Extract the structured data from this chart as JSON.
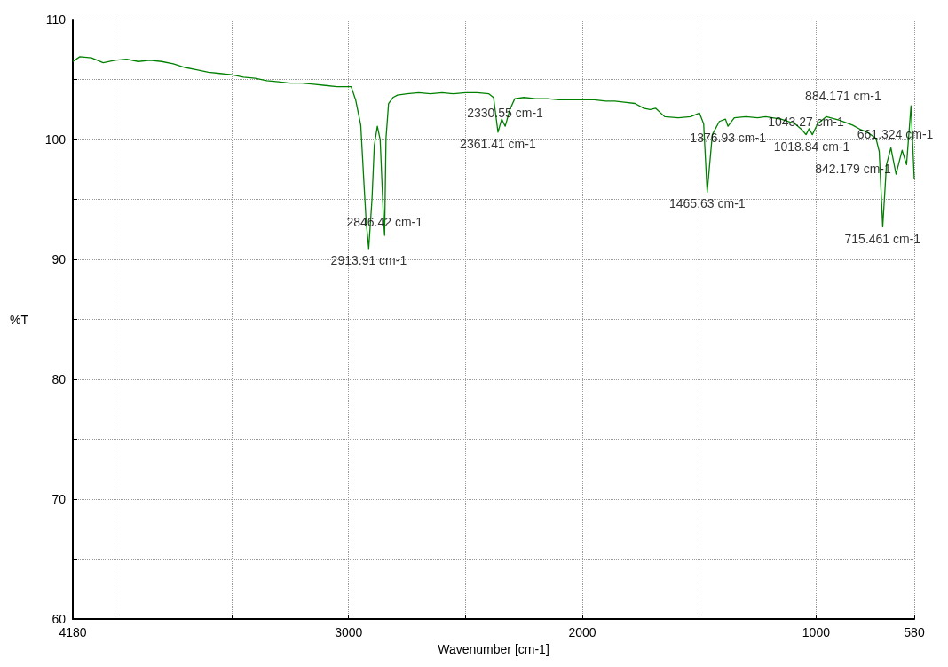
{
  "chart_data": {
    "type": "line",
    "xlabel": "Wavenumber [cm-1]",
    "ylabel": "%T",
    "xlim": [
      4180,
      580
    ],
    "xticks": [
      4180,
      {
        "value": 4000,
        "label": null
      },
      {
        "value": 3500,
        "label": null
      },
      3000,
      {
        "value": 2500,
        "label": null
      },
      2000,
      {
        "value": 1500,
        "label": null
      },
      1000,
      580
    ],
    "ylim": [
      60,
      110
    ],
    "yticks": [
      60,
      {
        "value": 65,
        "label": null
      },
      70,
      {
        "value": 75,
        "label": null
      },
      80,
      {
        "value": 85,
        "label": null
      },
      90,
      {
        "value": 95,
        "label": null
      },
      100,
      {
        "value": 105,
        "label": null
      },
      110
    ],
    "grid": true,
    "marker": "none",
    "line_style": "solid",
    "series": [
      {
        "color": "#008000",
        "x": [
          4180,
          4150,
          4100,
          4050,
          4000,
          3950,
          3900,
          3850,
          3800,
          3750,
          3700,
          3650,
          3600,
          3550,
          3500,
          3450,
          3400,
          3350,
          3300,
          3250,
          3200,
          3150,
          3100,
          3050,
          3020,
          2989,
          2970,
          2948,
          2933,
          2925,
          2914,
          2900,
          2890,
          2877,
          2865,
          2851,
          2846,
          2840,
          2829,
          2810,
          2791,
          2750,
          2700,
          2650,
          2600,
          2550,
          2500,
          2450,
          2400,
          2380,
          2361,
          2345,
          2330,
          2310,
          2289,
          2250,
          2200,
          2150,
          2100,
          2050,
          2002,
          1950,
          1900,
          1861,
          1820,
          1775,
          1738,
          1710,
          1686,
          1648,
          1589,
          1537,
          1499,
          1481,
          1466,
          1444,
          1414,
          1388,
          1377,
          1350,
          1300,
          1250,
          1216,
          1150,
          1090,
          1060,
          1043,
          1030,
          1016,
          994,
          956,
          900,
          844,
          807,
          780,
          744,
          730,
          715,
          699,
          680,
          658,
          632,
          613,
          594,
          580
        ],
        "values": [
          106.5,
          106.9,
          106.8,
          106.4,
          106.6,
          106.7,
          106.5,
          106.6,
          106.5,
          106.3,
          106.0,
          105.8,
          105.6,
          105.5,
          105.4,
          105.2,
          105.1,
          104.9,
          104.8,
          104.7,
          104.7,
          104.6,
          104.5,
          104.4,
          104.4,
          104.4,
          103.3,
          101.2,
          95.9,
          93.2,
          90.9,
          95.0,
          99.5,
          101.1,
          100.0,
          93.5,
          92.0,
          100.1,
          103.0,
          103.5,
          103.7,
          103.8,
          103.9,
          103.8,
          103.9,
          103.8,
          103.9,
          103.9,
          103.8,
          103.5,
          100.6,
          101.7,
          101.1,
          102.5,
          103.4,
          103.5,
          103.4,
          103.4,
          103.3,
          103.3,
          103.3,
          103.3,
          103.2,
          103.2,
          103.1,
          103.0,
          102.6,
          102.5,
          102.6,
          101.9,
          101.8,
          101.9,
          102.2,
          101.3,
          95.6,
          100.4,
          101.5,
          101.7,
          101.1,
          101.8,
          101.9,
          101.8,
          101.9,
          101.7,
          101.3,
          100.8,
          100.4,
          100.9,
          100.4,
          101.3,
          101.9,
          101.6,
          101.2,
          100.8,
          100.6,
          100.1,
          99.0,
          92.7,
          97.9,
          99.3,
          97.1,
          99.1,
          97.9,
          102.8,
          96.7
        ]
      }
    ],
    "annotations": [
      {
        "text": "2913.91 cm-1",
        "x": 2913.91,
        "y": 90.9
      },
      {
        "text": "2846.42 cm-1",
        "x": 2846.42,
        "y": 92.0
      },
      {
        "text": "2361.41 cm-1",
        "x": 2361.41,
        "y": 100.6
      },
      {
        "text": "2330.55 cm-1",
        "x": 2330.55,
        "y": 101.1
      },
      {
        "text": "1465.63 cm-1",
        "x": 1465.63,
        "y": 95.6
      },
      {
        "text": "1376.93 cm-1",
        "x": 1376.93,
        "y": 101.1
      },
      {
        "text": "1043.27 cm-1",
        "x": 1043.27,
        "y": 100.4
      },
      {
        "text": "1018.84 cm-1",
        "x": 1018.84,
        "y": 100.4
      },
      {
        "text": "884.171 cm-1",
        "x": 884.171,
        "y": 101.2
      },
      {
        "text": "842.179 cm-1",
        "x": 842.179,
        "y": 101.2
      },
      {
        "text": "715.461 cm-1",
        "x": 715.461,
        "y": 92.7
      },
      {
        "text": "661.324 cm-1",
        "x": 661.324,
        "y": 99.3
      }
    ]
  }
}
